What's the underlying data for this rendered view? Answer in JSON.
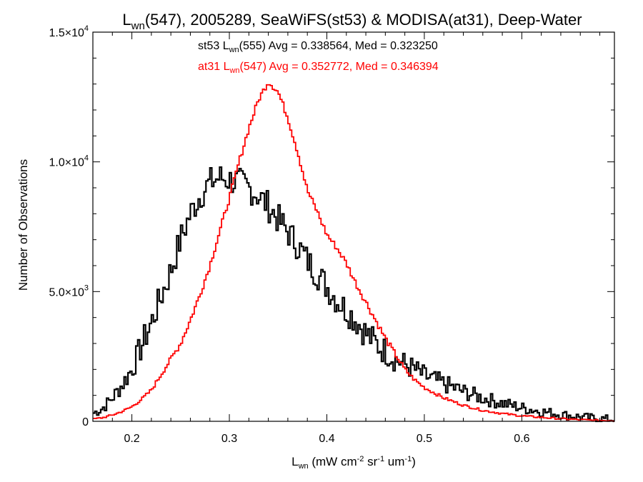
{
  "chart_data": {
    "type": "line",
    "title": {
      "pre": "L",
      "sub": "wn",
      "post": "(547), 2005289, SeaWiFS(st53) & MODISA(at31), Deep-Water"
    },
    "xlabel": {
      "pre": "L",
      "sub": "wn",
      "post": " (mW cm",
      "sup1": "-2",
      "mid1": " sr",
      "sup2": "-1",
      "mid2": " um",
      "sup3": "-1",
      "end": ")"
    },
    "ylabel": "Number of Observations",
    "xlim": [
      0.16,
      0.695
    ],
    "ylim": [
      0,
      15000
    ],
    "x_ticks": [
      {
        "value": 0.2,
        "label": "0.2"
      },
      {
        "value": 0.3,
        "label": "0.3"
      },
      {
        "value": 0.4,
        "label": "0.4"
      },
      {
        "value": 0.5,
        "label": "0.5"
      },
      {
        "value": 0.6,
        "label": "0.6"
      }
    ],
    "y_ticks": [
      {
        "value": 0,
        "mantissa": "0",
        "exp": ""
      },
      {
        "value": 5000,
        "mantissa": "5.0×10",
        "exp": "3"
      },
      {
        "value": 10000,
        "mantissa": "1.0×10",
        "exp": "4"
      },
      {
        "value": 15000,
        "mantissa": "1.5×10",
        "exp": "4"
      }
    ],
    "annotations": [
      {
        "color": "#000000",
        "pre": "st53 L",
        "sub": "wn",
        "post": "(555) Avg = 0.338564, Med = 0.323250"
      },
      {
        "color": "#ff0000",
        "pre": "at31 L",
        "sub": "wn",
        "post": "(547) Avg = 0.352772, Med = 0.346394"
      }
    ],
    "series": [
      {
        "color": "#000000",
        "bin_width": 0.002,
        "x": [
          0.16,
          0.17,
          0.18,
          0.19,
          0.2,
          0.21,
          0.22,
          0.23,
          0.24,
          0.25,
          0.26,
          0.27,
          0.28,
          0.29,
          0.3,
          0.31,
          0.32,
          0.33,
          0.34,
          0.35,
          0.36,
          0.37,
          0.38,
          0.39,
          0.4,
          0.41,
          0.42,
          0.43,
          0.44,
          0.45,
          0.46,
          0.47,
          0.48,
          0.49,
          0.5,
          0.52,
          0.54,
          0.56,
          0.58,
          0.6,
          0.62,
          0.64,
          0.66,
          0.68,
          0.695
        ],
        "y": [
          300,
          500,
          900,
          1400,
          2000,
          2900,
          3800,
          4800,
          5800,
          7000,
          8000,
          8700,
          9200,
          9400,
          9300,
          9200,
          9000,
          8700,
          8300,
          7800,
          7300,
          6800,
          6200,
          5700,
          5200,
          4700,
          4300,
          3900,
          3400,
          3000,
          2700,
          2400,
          2200,
          2000,
          1750,
          1450,
          1150,
          900,
          700,
          520,
          380,
          260,
          170,
          100,
          70
        ],
        "noise": 600
      },
      {
        "color": "#ff0000",
        "bin_width": 0.002,
        "x": [
          0.16,
          0.17,
          0.18,
          0.19,
          0.2,
          0.21,
          0.22,
          0.23,
          0.24,
          0.25,
          0.26,
          0.27,
          0.28,
          0.29,
          0.3,
          0.31,
          0.32,
          0.33,
          0.34,
          0.35,
          0.36,
          0.37,
          0.38,
          0.39,
          0.4,
          0.41,
          0.42,
          0.43,
          0.44,
          0.45,
          0.46,
          0.47,
          0.48,
          0.49,
          0.5,
          0.52,
          0.54,
          0.56,
          0.58,
          0.6,
          0.62,
          0.64,
          0.66,
          0.68,
          0.695
        ],
        "y": [
          80,
          140,
          240,
          380,
          560,
          850,
          1200,
          1800,
          2400,
          3000,
          3900,
          4900,
          6000,
          7300,
          8600,
          10000,
          11300,
          12400,
          13100,
          12700,
          11700,
          10400,
          8900,
          8100,
          7200,
          6700,
          6100,
          5300,
          4600,
          3900,
          3200,
          2600,
          2000,
          1600,
          1300,
          900,
          620,
          420,
          300,
          210,
          150,
          100,
          60,
          35,
          25
        ],
        "noise": 120
      }
    ]
  }
}
